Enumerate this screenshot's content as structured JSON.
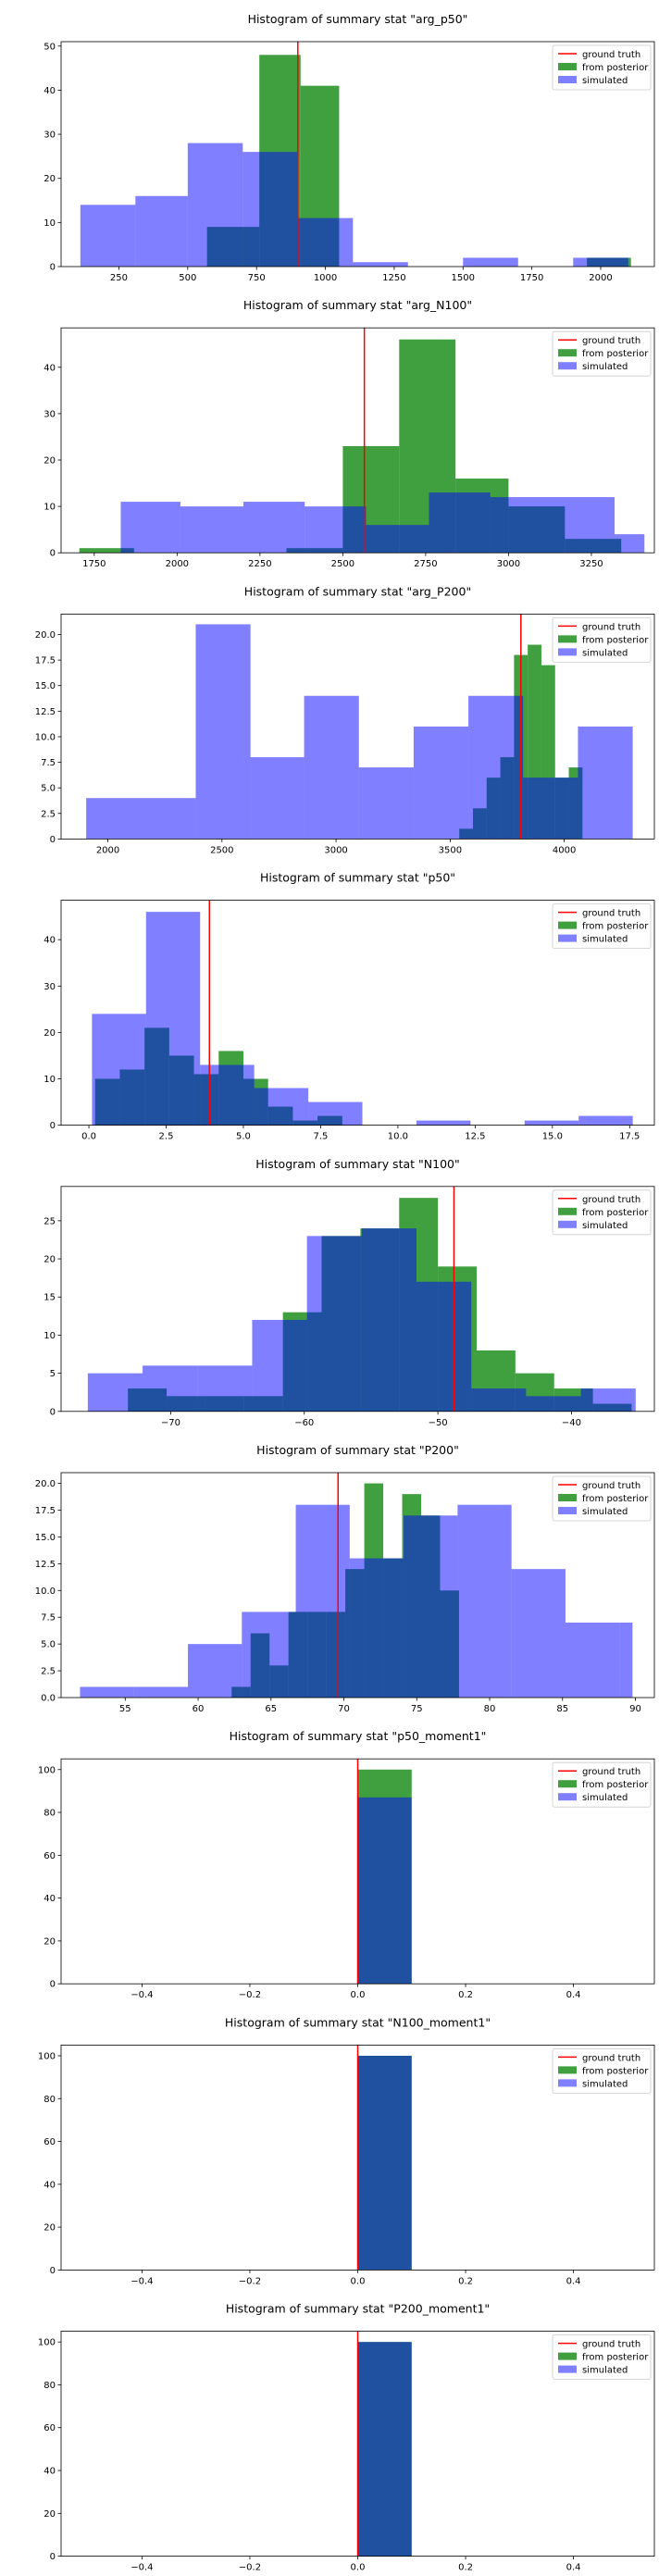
{
  "colors": {
    "ground_truth": "#ff0000",
    "posterior": "#008000",
    "posterior_alpha": 0.75,
    "simulated": "#0000ff",
    "simulated_alpha": 0.5,
    "overlap_blue": "#1f4e9e",
    "axes": "#000000"
  },
  "legend": {
    "placement": "top-right",
    "labels": [
      "ground truth",
      "from posterior",
      "simulated"
    ]
  },
  "chart_data": [
    {
      "type": "bar",
      "title": "Histogram of summary stat \"arg_p50\"",
      "xlim": [
        40,
        2195
      ],
      "ylim": [
        0,
        51
      ],
      "xticks": [
        250,
        500,
        750,
        1000,
        1250,
        1500,
        1750,
        2000
      ],
      "xtick_labels": [
        "250",
        "500",
        "750",
        "1000",
        "1250",
        "1500",
        "1750",
        "2000"
      ],
      "yticks": [
        0,
        10,
        20,
        30,
        40,
        50
      ],
      "ytick_labels": [
        "0",
        "10",
        "20",
        "30",
        "40",
        "50"
      ],
      "ground_truth": 900,
      "posterior_bins": [
        [
          570,
          760,
          9
        ],
        [
          760,
          910,
          48
        ],
        [
          910,
          1050,
          41
        ],
        [
          1950,
          2110,
          2
        ]
      ],
      "simulated_bins": [
        [
          110,
          310,
          14
        ],
        [
          310,
          500,
          16
        ],
        [
          500,
          700,
          28
        ],
        [
          700,
          900,
          26
        ],
        [
          900,
          1100,
          11
        ],
        [
          1100,
          1300,
          1
        ],
        [
          1500,
          1700,
          2
        ],
        [
          1900,
          2100,
          2
        ]
      ]
    },
    {
      "type": "bar",
      "title": "Histogram of summary stat \"arg_N100\"",
      "xlim": [
        1650,
        3440
      ],
      "ylim": [
        0,
        48.5
      ],
      "xticks": [
        1750,
        2000,
        2250,
        2500,
        2750,
        3000,
        3250
      ],
      "xtick_labels": [
        "1750",
        "2000",
        "2250",
        "2500",
        "2750",
        "3000",
        "3250"
      ],
      "yticks": [
        0,
        10,
        20,
        30,
        40
      ],
      "ytick_labels": [
        "0",
        "10",
        "20",
        "30",
        "40"
      ],
      "ground_truth": 2565,
      "posterior_bins": [
        [
          1705,
          1870,
          1
        ],
        [
          2330,
          2500,
          1
        ],
        [
          2500,
          2670,
          23
        ],
        [
          2670,
          2840,
          46
        ],
        [
          2840,
          3000,
          16
        ],
        [
          3000,
          3170,
          10
        ],
        [
          3170,
          3340,
          3
        ]
      ],
      "simulated_bins": [
        [
          1830,
          2010,
          11
        ],
        [
          2010,
          2200,
          10
        ],
        [
          2200,
          2385,
          11
        ],
        [
          2385,
          2570,
          10
        ],
        [
          2570,
          2760,
          6
        ],
        [
          2760,
          2945,
          13
        ],
        [
          2945,
          3130,
          12
        ],
        [
          3130,
          3320,
          12
        ],
        [
          3320,
          3410,
          4
        ]
      ]
    },
    {
      "type": "bar",
      "title": "Histogram of summary stat \"arg_P200\"",
      "xlim": [
        1795,
        4395
      ],
      "ylim": [
        0,
        22
      ],
      "xticks": [
        2000,
        2500,
        3000,
        3500,
        4000
      ],
      "xtick_labels": [
        "2000",
        "2500",
        "3000",
        "3500",
        "4000"
      ],
      "yticks": [
        0,
        2.5,
        5,
        7.5,
        10,
        12.5,
        15,
        17.5,
        20
      ],
      "ytick_labels": [
        "0",
        "2.5",
        "5.0",
        "7.5",
        "10.0",
        "12.5",
        "15.0",
        "17.5",
        "20.0"
      ],
      "ground_truth": 3810,
      "posterior_bins": [
        [
          3540,
          3600,
          1
        ],
        [
          3600,
          3660,
          3
        ],
        [
          3660,
          3720,
          6
        ],
        [
          3720,
          3780,
          8
        ],
        [
          3780,
          3840,
          18
        ],
        [
          3840,
          3900,
          19
        ],
        [
          3900,
          3960,
          17
        ],
        [
          3960,
          4020,
          6
        ],
        [
          4020,
          4080,
          7
        ]
      ],
      "simulated_bins": [
        [
          1905,
          2385,
          4
        ],
        [
          2385,
          2625,
          21
        ],
        [
          2625,
          2860,
          8
        ],
        [
          2860,
          3100,
          14
        ],
        [
          3100,
          3340,
          7
        ],
        [
          3340,
          3580,
          11
        ],
        [
          3580,
          3820,
          14
        ],
        [
          3820,
          4060,
          6
        ],
        [
          4060,
          4300,
          11
        ]
      ]
    },
    {
      "type": "bar",
      "title": "Histogram of summary stat \"p50\"",
      "xlim": [
        -0.9,
        18.3
      ],
      "ylim": [
        0,
        48.5
      ],
      "xticks": [
        0,
        2.5,
        5,
        7.5,
        10,
        12.5,
        15,
        17.5
      ],
      "xtick_labels": [
        "0.0",
        "2.5",
        "5.0",
        "7.5",
        "10.0",
        "12.5",
        "15.0",
        "17.5"
      ],
      "yticks": [
        0,
        10,
        20,
        30,
        40
      ],
      "ytick_labels": [
        "0",
        "10",
        "20",
        "30",
        "40"
      ],
      "ground_truth": 3.9,
      "posterior_bins": [
        [
          0.2,
          1.0,
          10
        ],
        [
          1.0,
          1.8,
          12
        ],
        [
          1.8,
          2.6,
          21
        ],
        [
          2.6,
          3.4,
          15
        ],
        [
          3.4,
          4.2,
          11
        ],
        [
          4.2,
          5.0,
          16
        ],
        [
          5.0,
          5.8,
          10
        ],
        [
          5.8,
          6.6,
          4
        ],
        [
          6.6,
          7.4,
          1
        ],
        [
          7.4,
          8.2,
          2
        ]
      ],
      "simulated_bins": [
        [
          0.1,
          1.85,
          24
        ],
        [
          1.85,
          3.6,
          46
        ],
        [
          3.6,
          5.35,
          13
        ],
        [
          5.35,
          7.1,
          8
        ],
        [
          7.1,
          8.85,
          5
        ],
        [
          10.6,
          12.35,
          1
        ],
        [
          14.1,
          15.85,
          1
        ],
        [
          15.85,
          17.6,
          2
        ]
      ]
    },
    {
      "type": "bar",
      "title": "Histogram of summary stat \"N100\"",
      "xlim": [
        -78.2,
        -33.8
      ],
      "ylim": [
        0,
        29.5
      ],
      "xticks": [
        -70,
        -60,
        -50,
        -40
      ],
      "xtick_labels": [
        "−70",
        "−60",
        "−50",
        "−40"
      ],
      "yticks": [
        0,
        5,
        10,
        15,
        20,
        25
      ],
      "ytick_labels": [
        "0",
        "5",
        "10",
        "15",
        "20",
        "25"
      ],
      "ground_truth": -48.8,
      "posterior_bins": [
        [
          -73.2,
          -70.3,
          3
        ],
        [
          -70.3,
          -67.4,
          2
        ],
        [
          -67.4,
          -64.5,
          2
        ],
        [
          -64.5,
          -61.6,
          2
        ],
        [
          -61.6,
          -58.7,
          13
        ],
        [
          -58.7,
          -55.8,
          23
        ],
        [
          -55.8,
          -52.9,
          24
        ],
        [
          -52.9,
          -50.0,
          28
        ],
        [
          -50.0,
          -47.1,
          19
        ],
        [
          -47.1,
          -44.2,
          8
        ],
        [
          -44.2,
          -41.3,
          5
        ],
        [
          -41.3,
          -38.4,
          3
        ],
        [
          -38.4,
          -35.5,
          1
        ]
      ],
      "simulated_bins": [
        [
          -76.2,
          -72.1,
          5
        ],
        [
          -72.1,
          -68.0,
          6
        ],
        [
          -68.0,
          -63.9,
          6
        ],
        [
          -63.9,
          -59.8,
          12
        ],
        [
          -59.8,
          -55.7,
          23
        ],
        [
          -55.7,
          -51.6,
          24
        ],
        [
          -51.6,
          -47.5,
          17
        ],
        [
          -47.5,
          -43.4,
          3
        ],
        [
          -43.4,
          -39.3,
          2
        ],
        [
          -39.3,
          -35.2,
          3
        ]
      ]
    },
    {
      "type": "bar",
      "title": "Histogram of summary stat \"P200\"",
      "xlim": [
        50.6,
        91.3
      ],
      "ylim": [
        0,
        21
      ],
      "xticks": [
        55,
        60,
        65,
        70,
        75,
        80,
        85,
        90
      ],
      "xtick_labels": [
        "55",
        "60",
        "65",
        "70",
        "75",
        "80",
        "85",
        "90"
      ],
      "yticks": [
        0,
        2.5,
        5,
        7.5,
        10,
        12.5,
        15,
        17.5,
        20
      ],
      "ytick_labels": [
        "0.0",
        "2.5",
        "5.0",
        "7.5",
        "10.0",
        "12.5",
        "15.0",
        "17.5",
        "20.0"
      ],
      "ground_truth": 69.6,
      "posterior_bins": [
        [
          62.3,
          63.6,
          1
        ],
        [
          63.6,
          64.9,
          6
        ],
        [
          64.9,
          66.2,
          3
        ],
        [
          66.2,
          67.5,
          8
        ],
        [
          67.5,
          68.8,
          8
        ],
        [
          68.8,
          70.1,
          8
        ],
        [
          70.1,
          71.4,
          12
        ],
        [
          71.4,
          72.7,
          20
        ],
        [
          72.7,
          74.0,
          13
        ],
        [
          74.0,
          75.3,
          19
        ],
        [
          75.3,
          76.6,
          17
        ],
        [
          76.6,
          77.9,
          10
        ]
      ],
      "simulated_bins": [
        [
          51.9,
          55.6,
          1
        ],
        [
          55.6,
          59.3,
          1
        ],
        [
          59.3,
          63.0,
          5
        ],
        [
          63.0,
          66.7,
          8
        ],
        [
          66.7,
          70.4,
          18
        ],
        [
          70.4,
          74.1,
          13
        ],
        [
          74.1,
          77.8,
          17
        ],
        [
          77.8,
          81.5,
          18
        ],
        [
          81.5,
          85.2,
          12
        ],
        [
          85.2,
          88.9,
          7
        ],
        [
          88.9,
          89.8,
          7
        ]
      ]
    },
    {
      "type": "bar",
      "title": "Histogram of summary stat \"p50_moment1\"",
      "xlim": [
        -0.55,
        0.55
      ],
      "ylim": [
        0,
        105
      ],
      "xticks": [
        -0.4,
        -0.2,
        0,
        0.2,
        0.4
      ],
      "xtick_labels": [
        "−0.4",
        "−0.2",
        "0.0",
        "0.2",
        "0.4"
      ],
      "yticks": [
        0,
        20,
        40,
        60,
        80,
        100
      ],
      "ytick_labels": [
        "0",
        "20",
        "40",
        "60",
        "80",
        "100"
      ],
      "ground_truth": 0,
      "posterior_bins": [
        [
          0,
          0.1,
          100
        ]
      ],
      "simulated_bins": [
        [
          0,
          0.1,
          87
        ]
      ]
    },
    {
      "type": "bar",
      "title": "Histogram of summary stat \"N100_moment1\"",
      "xlim": [
        -0.55,
        0.55
      ],
      "ylim": [
        0,
        105
      ],
      "xticks": [
        -0.4,
        -0.2,
        0,
        0.2,
        0.4
      ],
      "xtick_labels": [
        "−0.4",
        "−0.2",
        "0.0",
        "0.2",
        "0.4"
      ],
      "yticks": [
        0,
        20,
        40,
        60,
        80,
        100
      ],
      "ytick_labels": [
        "0",
        "20",
        "40",
        "60",
        "80",
        "100"
      ],
      "ground_truth": 0,
      "posterior_bins": [
        [
          0,
          0.1,
          100
        ]
      ],
      "simulated_bins": [
        [
          0,
          0.1,
          100
        ]
      ]
    },
    {
      "type": "bar",
      "title": "Histogram of summary stat \"P200_moment1\"",
      "xlim": [
        -0.55,
        0.55
      ],
      "ylim": [
        0,
        105
      ],
      "xticks": [
        -0.4,
        -0.2,
        0,
        0.2,
        0.4
      ],
      "xtick_labels": [
        "−0.4",
        "−0.2",
        "0.0",
        "0.2",
        "0.4"
      ],
      "yticks": [
        0,
        20,
        40,
        60,
        80,
        100
      ],
      "ytick_labels": [
        "0",
        "20",
        "40",
        "60",
        "80",
        "100"
      ],
      "ground_truth": 0,
      "posterior_bins": [
        [
          0,
          0.1,
          100
        ]
      ],
      "simulated_bins": [
        [
          0,
          0.1,
          100
        ]
      ]
    }
  ]
}
